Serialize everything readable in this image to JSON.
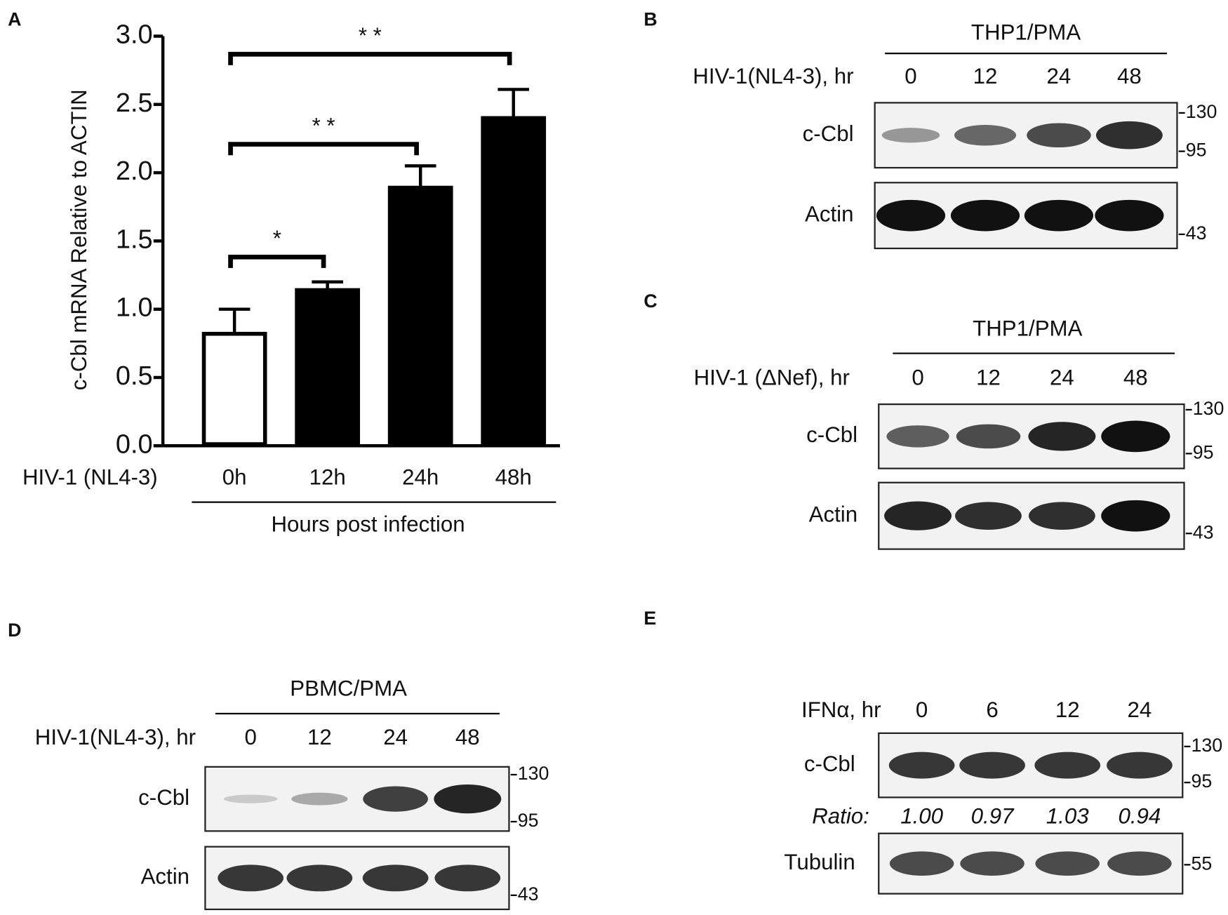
{
  "chart_data": {
    "type": "bar",
    "panel_label": "A",
    "y_label": "c-Cbl mRNA Relative to  ACTIN",
    "x_row_label": "HIV-1 (NL4-3)",
    "x_label": "Hours post infection",
    "categories": [
      "0h",
      "12h",
      "24h",
      "48h"
    ],
    "values": [
      0.82,
      1.14,
      1.89,
      2.4
    ],
    "errors": [
      0.18,
      0.06,
      0.16,
      0.21
    ],
    "colors": [
      "#ffffff",
      "#000000",
      "#000000",
      "#000000"
    ],
    "ylim": [
      0,
      3
    ],
    "yticks": [
      {
        "value": 0,
        "label": "0.0"
      },
      {
        "value": 0.5,
        "label": "0.5"
      },
      {
        "value": 1,
        "label": "1.0"
      },
      {
        "value": 1.5,
        "label": "1.5"
      },
      {
        "value": 2,
        "label": "2.0"
      },
      {
        "value": 2.5,
        "label": "2.5"
      },
      {
        "value": 3,
        "label": "3.0"
      }
    ],
    "significance": [
      {
        "from": "0h",
        "to": "12h",
        "label": "*"
      },
      {
        "from": "0h",
        "to": "24h",
        "label": "* *"
      },
      {
        "from": "0h",
        "to": "48h",
        "label": "* *"
      }
    ]
  },
  "blots": [
    {
      "panel": "B",
      "header": "THP1/PMA",
      "row_label": "HIV-1(NL4-3), hr",
      "lanes": [
        "0",
        "12",
        "24",
        "48"
      ],
      "rows": [
        {
          "label": "c-Cbl",
          "markers": [
            "130",
            "95"
          ]
        },
        {
          "label": "Actin",
          "markers": [
            "43"
          ]
        }
      ]
    },
    {
      "panel": "C",
      "header": "THP1/PMA",
      "row_label": "HIV-1 (ΔNef), hr",
      "lanes": [
        "0",
        "12",
        "24",
        "48"
      ],
      "rows": [
        {
          "label": "c-Cbl",
          "markers": [
            "130",
            "95"
          ]
        },
        {
          "label": "Actin",
          "markers": [
            "43"
          ]
        }
      ]
    },
    {
      "panel": "D",
      "header": "PBMC/PMA",
      "row_label": "HIV-1(NL4-3), hr",
      "lanes": [
        "0",
        "12",
        "24",
        "48"
      ],
      "rows": [
        {
          "label": "c-Cbl",
          "markers": [
            "130",
            "95"
          ]
        },
        {
          "label": "Actin",
          "markers": [
            "43"
          ]
        }
      ]
    },
    {
      "panel": "E",
      "row_label": "IFNα, hr",
      "lanes": [
        "0",
        "6",
        "12",
        "24"
      ],
      "rows": [
        {
          "label": "c-Cbl",
          "markers": [
            "130",
            "95"
          ]
        },
        {
          "label": "Tubulin",
          "markers": [
            "55"
          ]
        }
      ],
      "ratio": {
        "label": "Ratio:",
        "values": [
          "1.00",
          "0.97",
          "1.03",
          "0.94"
        ]
      }
    }
  ]
}
